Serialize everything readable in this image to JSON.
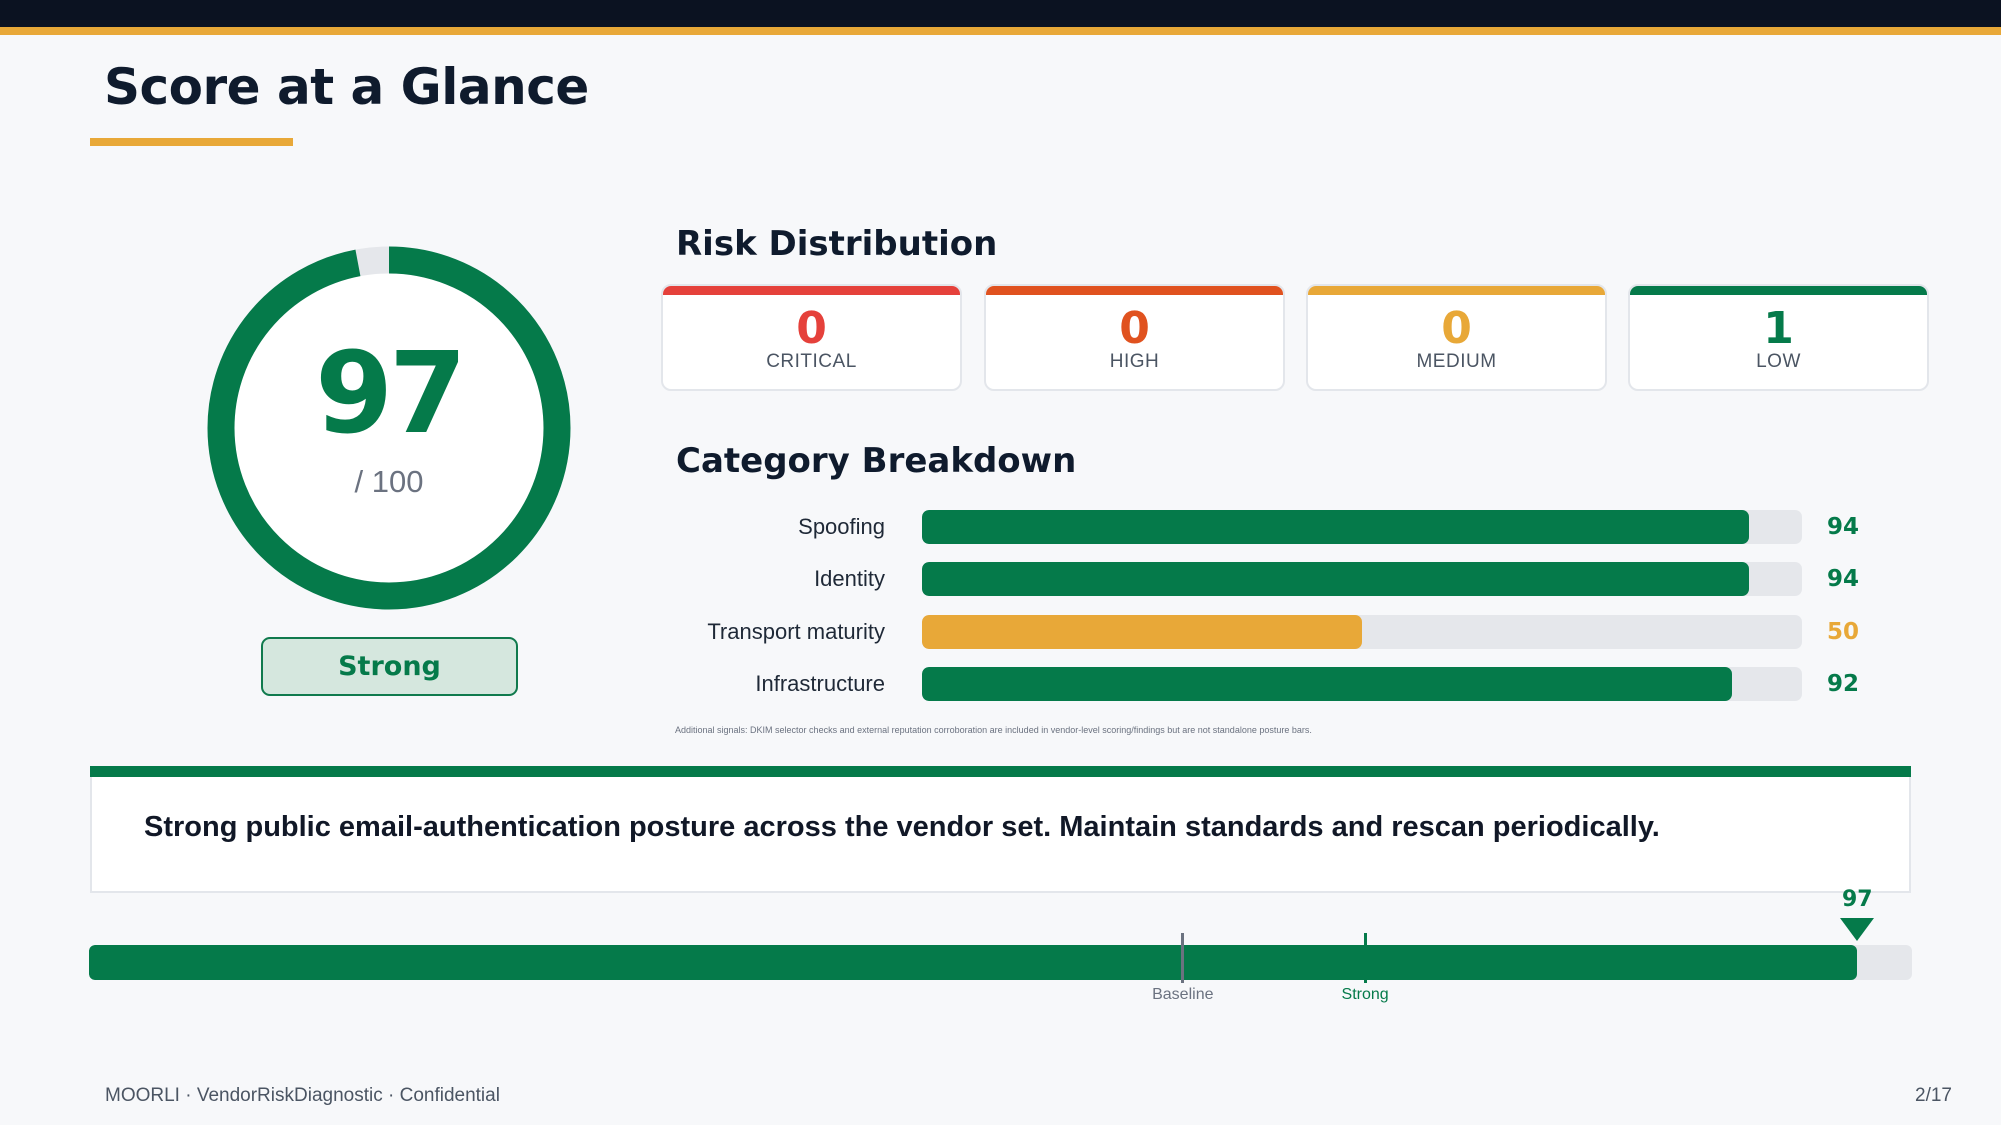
{
  "page": {
    "title": "Score at a Glance",
    "footer_left": "MOORLI · VendorRiskDiagnostic · Confidential",
    "footer_right": "2/17"
  },
  "colors": {
    "strong": "#057a4a",
    "critical": "#e5413b",
    "high": "#e0521f",
    "medium": "#e8a838",
    "low": "#057a4a",
    "navy": "#0b1221",
    "accent": "#e8a838"
  },
  "score": {
    "value": "97",
    "max_label": "/ 100",
    "fraction": 0.97,
    "rating": "Strong"
  },
  "risk_distribution": {
    "title": "Risk Distribution",
    "cards": [
      {
        "count": "0",
        "label": "CRITICAL",
        "color": "#e5413b"
      },
      {
        "count": "0",
        "label": "HIGH",
        "color": "#e0521f"
      },
      {
        "count": "0",
        "label": "MEDIUM",
        "color": "#e8a838"
      },
      {
        "count": "1",
        "label": "LOW",
        "color": "#057a4a"
      }
    ]
  },
  "category_breakdown": {
    "title": "Category Breakdown",
    "max": 100,
    "rows": [
      {
        "label": "Spoofing",
        "value": 94,
        "value_label": "94",
        "color": "#057a4a"
      },
      {
        "label": "Identity",
        "value": 94,
        "value_label": "94",
        "color": "#057a4a"
      },
      {
        "label": "Transport maturity",
        "value": 50,
        "value_label": "50",
        "color": "#e8a838"
      },
      {
        "label": "Infrastructure",
        "value": 92,
        "value_label": "92",
        "color": "#057a4a"
      }
    ],
    "footnote": "Additional signals: DKIM selector checks and external reputation corroboration are included in vendor-level scoring/findings but are not standalone posture bars."
  },
  "summary": {
    "text": "Strong public email-authentication posture across the vendor set. Maintain standards and rescan periodically."
  },
  "scale": {
    "value": 97,
    "value_label": "97",
    "max": 100,
    "thresholds": [
      {
        "label": "Baseline",
        "value": 60,
        "color": "#6b7280"
      },
      {
        "label": "Strong",
        "value": 70,
        "color": "#057a4a"
      }
    ]
  }
}
